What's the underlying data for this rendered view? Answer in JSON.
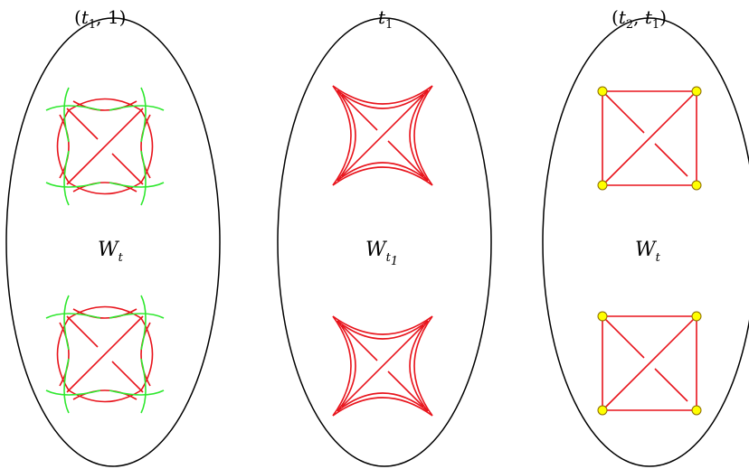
{
  "panels": [
    {
      "title": {
        "open": "(",
        "t": "t",
        "sub": "1",
        "rest": ", 1)"
      },
      "region_label": {
        "main": "W",
        "sub": "t"
      },
      "style": "crossed-arcs"
    },
    {
      "title": {
        "t": "t",
        "sub": "1"
      },
      "region_label": {
        "main": "W",
        "sub": "t",
        "subsub": "1"
      },
      "style": "astroid"
    },
    {
      "title": {
        "open": "(",
        "t": "t",
        "sub": "2",
        "mid": ", ",
        "t2": "t",
        "sub2": "1",
        "close": ")"
      },
      "region_label": {
        "main": "W",
        "sub": "t"
      },
      "style": "square-graph"
    }
  ],
  "colors": {
    "outline": "#000000",
    "red": "#e8141c",
    "green": "#2ee82e",
    "vertex_fill": "#ffff00",
    "vertex_stroke": "#8a6a00"
  }
}
